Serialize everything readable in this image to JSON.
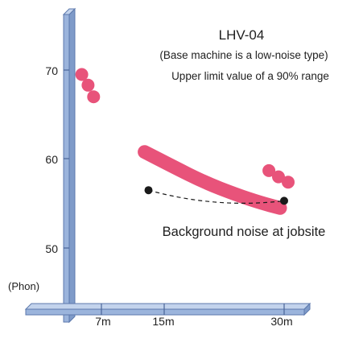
{
  "chart_data": {
    "type": "scatter",
    "title": "LHV-04",
    "subtitle": "(Base machine is a low-noise type)",
    "subtitle2": "Upper limit value of a 90% range",
    "ylabel": "(Phon)",
    "ylim": [
      42,
      75
    ],
    "y_ticks": [
      "50",
      "60",
      "70"
    ],
    "y_tick_values": [
      50,
      60,
      70
    ],
    "x_ticks": [
      "7m",
      "15m",
      "30m"
    ],
    "x_tick_values": [
      7,
      15,
      30
    ],
    "annotation": "Background noise at jobsite",
    "colors": {
      "machine": "#e8537a",
      "background": "#1a1a1a",
      "axis_fill": "#9bb4dc",
      "axis_edge": "#5d79ad"
    },
    "series": [
      {
        "kind": "dots",
        "points": [
          {
            "x": 4.5,
            "y": 69.5
          },
          {
            "x": 5.3,
            "y": 68.3
          },
          {
            "x": 6.0,
            "y": 67.0
          }
        ]
      },
      {
        "kind": "band",
        "points": [
          {
            "x": 12.5,
            "y": 60.8
          },
          {
            "x": 16.0,
            "y": 59.2
          },
          {
            "x": 20.0,
            "y": 57.4
          },
          {
            "x": 24.0,
            "y": 56.0
          },
          {
            "x": 27.0,
            "y": 55.1
          },
          {
            "x": 29.5,
            "y": 54.5
          }
        ]
      },
      {
        "kind": "dots",
        "points": [
          {
            "x": 28.1,
            "y": 58.7
          },
          {
            "x": 29.3,
            "y": 58.0
          },
          {
            "x": 30.5,
            "y": 57.4
          }
        ]
      },
      {
        "kind": "background",
        "points": [
          {
            "x": 13.0,
            "y": 56.5
          },
          {
            "x": 30.0,
            "y": 55.3
          }
        ]
      }
    ]
  }
}
